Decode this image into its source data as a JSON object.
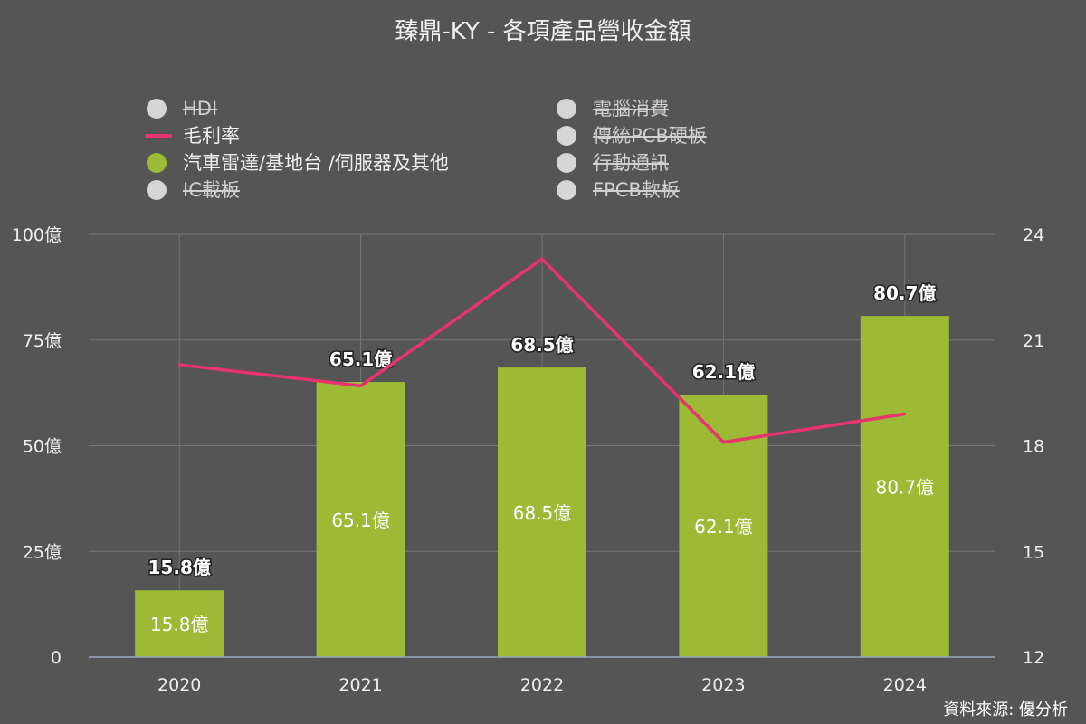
{
  "chart_data": {
    "type": "bar",
    "title": "臻鼎-KY - 各項產品營收金額",
    "categories": [
      "2020",
      "2021",
      "2022",
      "2023",
      "2024"
    ],
    "series": [
      {
        "name": "汽車雷達/基地台 /伺服器及其他",
        "type": "bar",
        "axis": "left",
        "values": [
          15.8,
          65.1,
          68.5,
          62.1,
          80.7
        ],
        "labels": [
          "15.8億",
          "65.1億",
          "68.5億",
          "62.1億",
          "80.7億"
        ],
        "color": "#9cba35"
      },
      {
        "name": "毛利率",
        "type": "line",
        "axis": "right",
        "values": [
          20.3,
          19.7,
          23.3,
          18.1,
          18.9
        ],
        "color": "#e8336e"
      }
    ],
    "y_left": {
      "ylim": [
        0,
        100
      ],
      "ticks": [
        "0",
        "25億",
        "50億",
        "75億",
        "100億"
      ]
    },
    "y_right": {
      "ylim": [
        12,
        24
      ],
      "ticks": [
        "12",
        "15",
        "18",
        "21",
        "24"
      ]
    },
    "grid": true,
    "legend": {
      "placement": "top",
      "items": [
        {
          "label": "HDI",
          "enabled": false,
          "marker": "dot"
        },
        {
          "label": "毛利率",
          "enabled": true,
          "marker": "line"
        },
        {
          "label": "汽車雷達/基地台 /伺服器及其他",
          "enabled": true,
          "marker": "dot"
        },
        {
          "label": "IC載板",
          "enabled": false,
          "marker": "dot"
        },
        {
          "label": "電腦消費",
          "enabled": false,
          "marker": "dot"
        },
        {
          "label": "傳統PCB硬板",
          "enabled": false,
          "marker": "dot"
        },
        {
          "label": "行動通訊",
          "enabled": false,
          "marker": "dot"
        },
        {
          "label": "FPCB軟板",
          "enabled": false,
          "marker": "dot"
        }
      ]
    },
    "source": "資料來源: 優分析"
  }
}
